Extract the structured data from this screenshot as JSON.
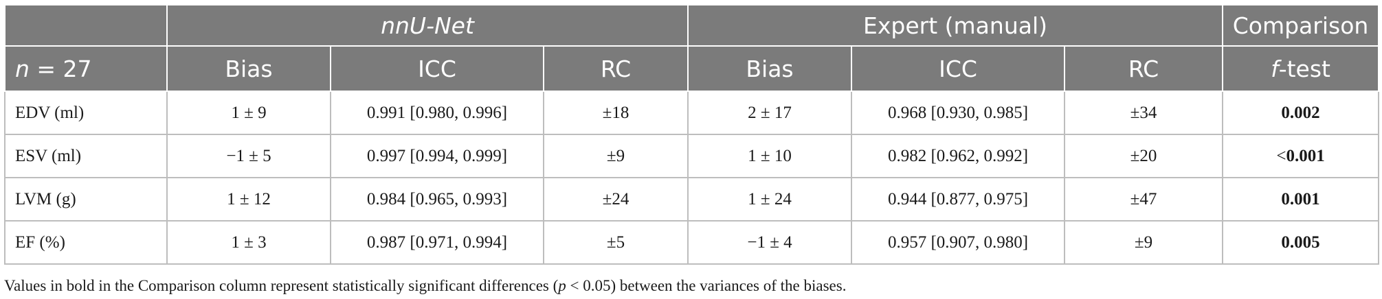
{
  "header": {
    "groups": {
      "nnunet": "nnU-Net",
      "expert": "Expert (manual)",
      "comparison": "Comparison"
    },
    "n_label": "n",
    "n_eq": " = 27",
    "columns": {
      "bias1": "Bias",
      "icc1": "ICC",
      "rc1": "RC",
      "bias2": "Bias",
      "icc2": "ICC",
      "rc2": "RC",
      "ftest_f": "f",
      "ftest_rest": "-test"
    }
  },
  "rows": [
    {
      "label": "EDV (ml)",
      "bias1": "1 ± 9",
      "icc1": "0.991 [0.980, 0.996]",
      "rc1": "±18",
      "bias2": "2 ± 17",
      "icc2": "0.968 [0.930, 0.985]",
      "rc2": "±34",
      "cmp_prefix": "",
      "cmp": "0.002"
    },
    {
      "label": "ESV (ml)",
      "bias1": "−1 ± 5",
      "icc1": "0.997 [0.994, 0.999]",
      "rc1": "±9",
      "bias2": "1 ± 10",
      "icc2": "0.982 [0.962, 0.992]",
      "rc2": "±20",
      "cmp_prefix": "<",
      "cmp": "0.001"
    },
    {
      "label": "LVM (g)",
      "bias1": "1 ± 12",
      "icc1": "0.984 [0.965, 0.993]",
      "rc1": "±24",
      "bias2": "1 ± 24",
      "icc2": "0.944 [0.877, 0.975]",
      "rc2": "±47",
      "cmp_prefix": "",
      "cmp": "0.001"
    },
    {
      "label": "EF (%)",
      "bias1": "1 ± 3",
      "icc1": "0.987 [0.971, 0.994]",
      "rc1": "±5",
      "bias2": "−1 ± 4",
      "icc2": "0.957 [0.907, 0.980]",
      "rc2": "±9",
      "cmp_prefix": "",
      "cmp": "0.005"
    }
  ],
  "footnote": {
    "before": "Values in bold in the Comparison column represent statistically significant differences (",
    "p": "p",
    "after": " < 0.05) between the variances of the biases."
  }
}
